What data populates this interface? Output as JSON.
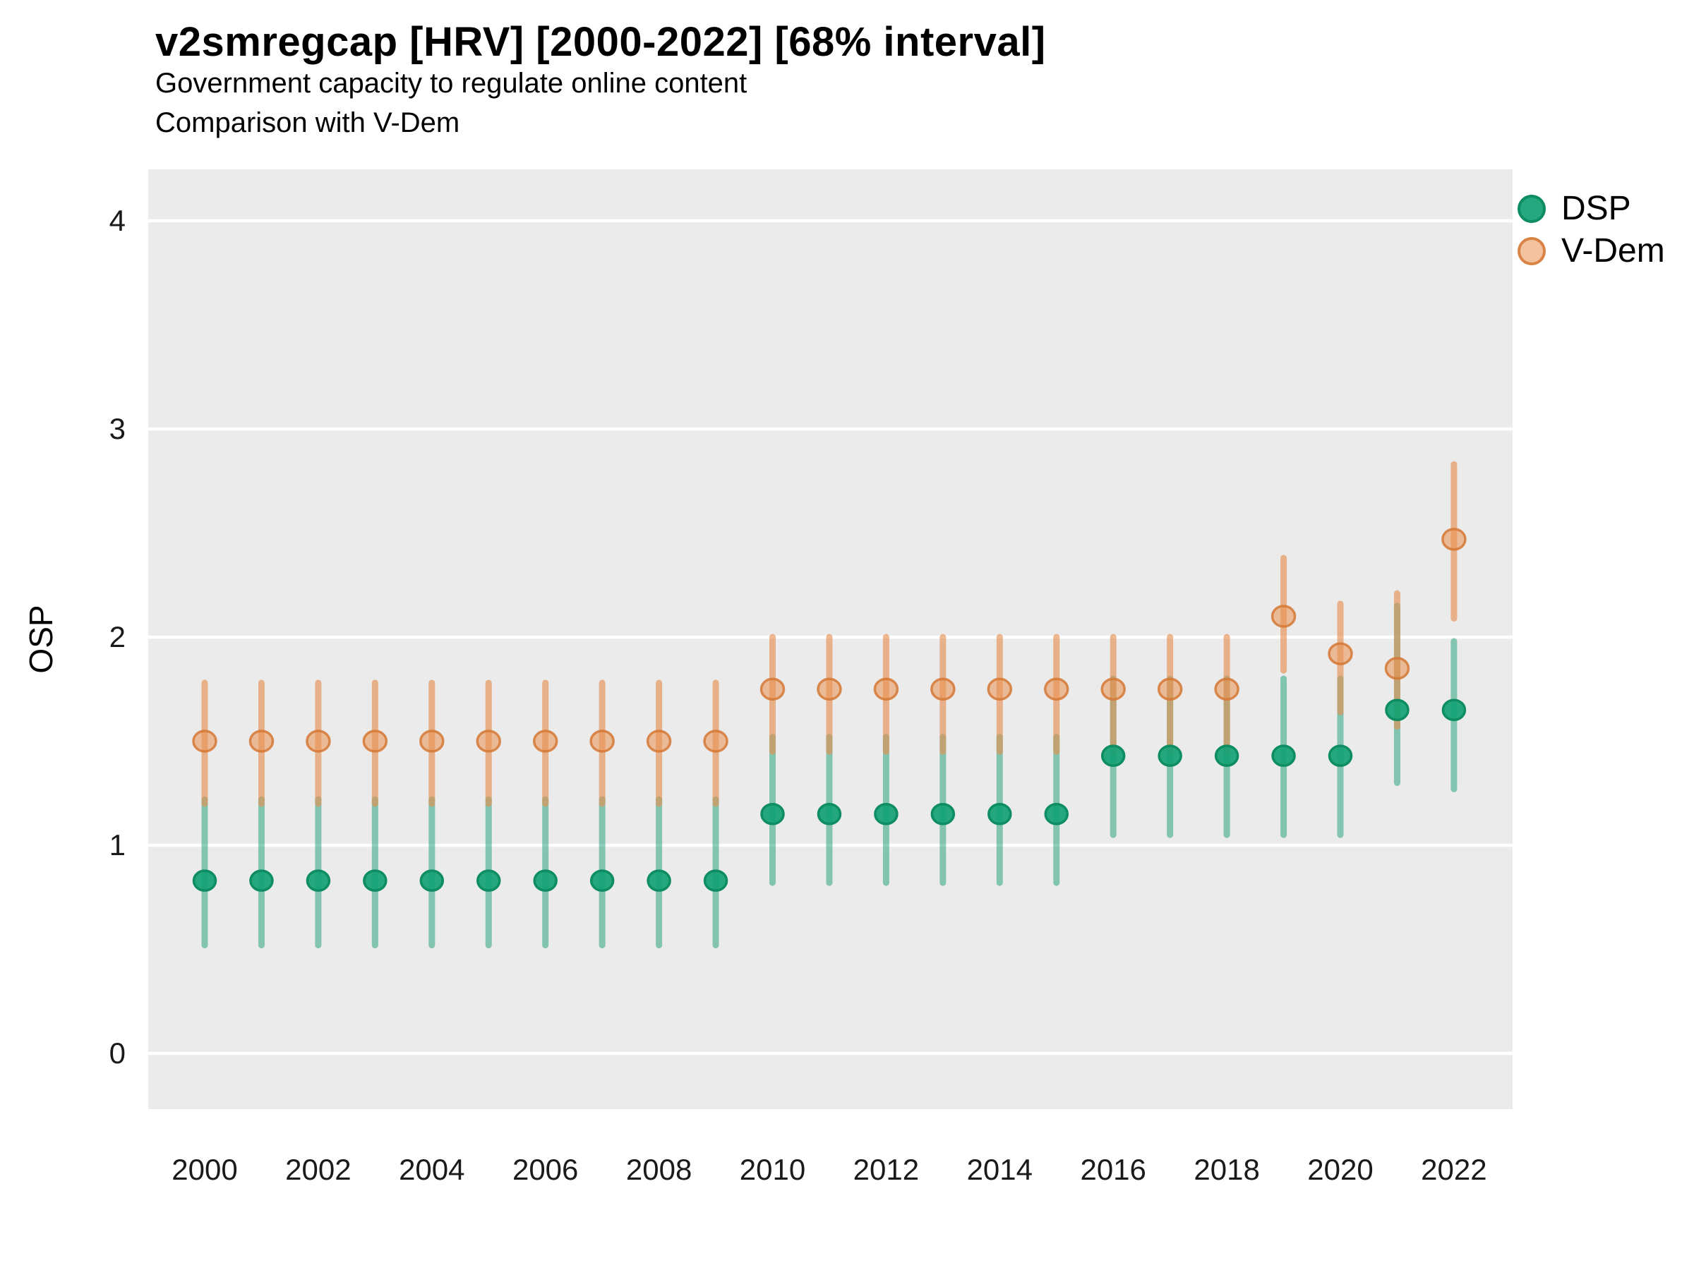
{
  "title": "v2smregcap [HRV] [2000-2022] [68% interval]",
  "subtitle": "Government capacity to regulate online content",
  "subtitle2": "Comparison with V-Dem",
  "axes": {
    "y_label": "OSP",
    "y_ticks": [
      0,
      1,
      2,
      3,
      4
    ],
    "x_ticks": [
      2000,
      2002,
      2004,
      2006,
      2008,
      2010,
      2012,
      2014,
      2016,
      2018,
      2020,
      2022
    ]
  },
  "legend": {
    "items": [
      {
        "label": "DSP"
      },
      {
        "label": "V-Dem"
      }
    ]
  },
  "colors": {
    "dsp": "#1B9E77",
    "dsp_line": "rgba(27,158,119,0.5)",
    "dsp_point_fill": "rgba(18,161,116,0.92)",
    "dsp_point_stroke": "#0E8C62",
    "vdem": "#E1884F",
    "vdem_line": "rgba(230,140,76,0.62)",
    "vdem_point_fill": "rgba(233,145,81,0.55)",
    "vdem_point_stroke": "rgba(213,120,53,0.85)",
    "panel_bg": "#EBEBEB",
    "grid": "#FFFFFF",
    "text": "#000000"
  },
  "chart_data": {
    "type": "pointrange-scatter",
    "title": "v2smregcap [HRV] [2000-2022] [68% interval]",
    "interval": "68%",
    "xlabel": "",
    "ylabel": "OSP",
    "ylim": [
      -0.27,
      4.25
    ],
    "xlim": [
      1998.9,
      2023.1
    ],
    "grid": "horizontal-white-on-gray",
    "legend_position": "right-top",
    "x": [
      2000,
      2001,
      2002,
      2003,
      2004,
      2005,
      2006,
      2007,
      2008,
      2009,
      2010,
      2011,
      2012,
      2013,
      2014,
      2015,
      2016,
      2017,
      2018,
      2019,
      2020,
      2021,
      2022
    ],
    "series": [
      {
        "name": "DSP",
        "est": [
          0.83,
          0.83,
          0.83,
          0.83,
          0.83,
          0.83,
          0.83,
          0.83,
          0.83,
          0.83,
          1.15,
          1.15,
          1.15,
          1.15,
          1.15,
          1.15,
          1.43,
          1.43,
          1.43,
          1.43,
          1.43,
          1.65,
          1.65
        ],
        "lo": [
          0.52,
          0.52,
          0.52,
          0.52,
          0.52,
          0.52,
          0.52,
          0.52,
          0.52,
          0.52,
          0.82,
          0.82,
          0.82,
          0.82,
          0.82,
          0.82,
          1.05,
          1.05,
          1.05,
          1.05,
          1.05,
          1.3,
          1.27
        ],
        "hi": [
          1.22,
          1.22,
          1.22,
          1.22,
          1.22,
          1.22,
          1.22,
          1.22,
          1.22,
          1.22,
          1.52,
          1.52,
          1.52,
          1.52,
          1.52,
          1.52,
          1.8,
          1.8,
          1.8,
          1.8,
          1.8,
          2.15,
          1.98
        ]
      },
      {
        "name": "V-Dem",
        "est": [
          1.5,
          1.5,
          1.5,
          1.5,
          1.5,
          1.5,
          1.5,
          1.5,
          1.5,
          1.5,
          1.75,
          1.75,
          1.75,
          1.75,
          1.75,
          1.75,
          1.75,
          1.75,
          1.75,
          2.1,
          1.92,
          1.85,
          2.47
        ],
        "lo": [
          1.2,
          1.2,
          1.2,
          1.2,
          1.2,
          1.2,
          1.2,
          1.2,
          1.2,
          1.2,
          1.45,
          1.45,
          1.45,
          1.45,
          1.45,
          1.45,
          1.45,
          1.45,
          1.45,
          1.84,
          1.64,
          1.57,
          2.09
        ],
        "hi": [
          1.78,
          1.78,
          1.78,
          1.78,
          1.78,
          1.78,
          1.78,
          1.78,
          1.78,
          1.78,
          2.0,
          2.0,
          2.0,
          2.0,
          2.0,
          2.0,
          2.0,
          2.0,
          2.0,
          2.38,
          2.16,
          2.21,
          2.83
        ]
      }
    ]
  }
}
